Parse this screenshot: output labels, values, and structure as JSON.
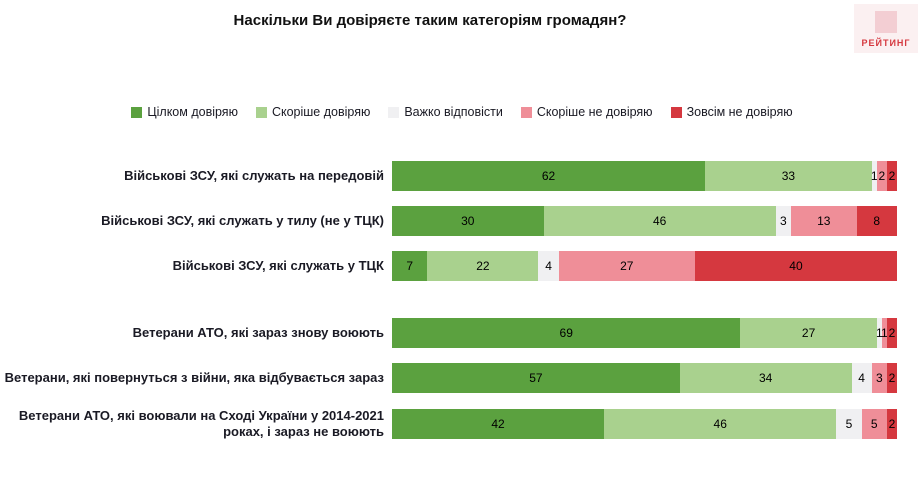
{
  "logo": {
    "text": "РЕЙТИНГ"
  },
  "chart_data": {
    "type": "bar",
    "orientation": "horizontal-stacked",
    "title": "Наскільки Ви довіряєте таким категоріям громадян?",
    "xlim": [
      0,
      100
    ],
    "grid": false,
    "legend_position": "top",
    "group_breaks": [
      3
    ],
    "categories": [
      "Військові ЗСУ, які служать на передовій",
      "Військові ЗСУ, які служать у тилу (не у ТЦК)",
      "Військові ЗСУ, які служать у ТЦК",
      "Ветерани АТО, які зараз знову воюють",
      "Ветерани, які повернуться з війни, яка відбувається зараз",
      "Ветерани АТО, які воювали на Сході України у 2014-2021 роках, і зараз не воюють"
    ],
    "series": [
      {
        "name": "Цілком довіряю",
        "color": "#5ba13f",
        "values": [
          62,
          30,
          7,
          69,
          57,
          42
        ]
      },
      {
        "name": "Скоріше довіряю",
        "color": "#a9d18e",
        "values": [
          33,
          46,
          22,
          27,
          34,
          46
        ]
      },
      {
        "name": "Важко відповісти",
        "color": "#f0f0f2",
        "values": [
          1,
          3,
          4,
          1,
          4,
          5
        ]
      },
      {
        "name": "Скоріше не довіряю",
        "color": "#ef8e98",
        "values": [
          2,
          13,
          27,
          1,
          3,
          5
        ]
      },
      {
        "name": "Зовсім не довіряю",
        "color": "#d5383f",
        "values": [
          2,
          8,
          40,
          2,
          2,
          2
        ]
      }
    ]
  }
}
